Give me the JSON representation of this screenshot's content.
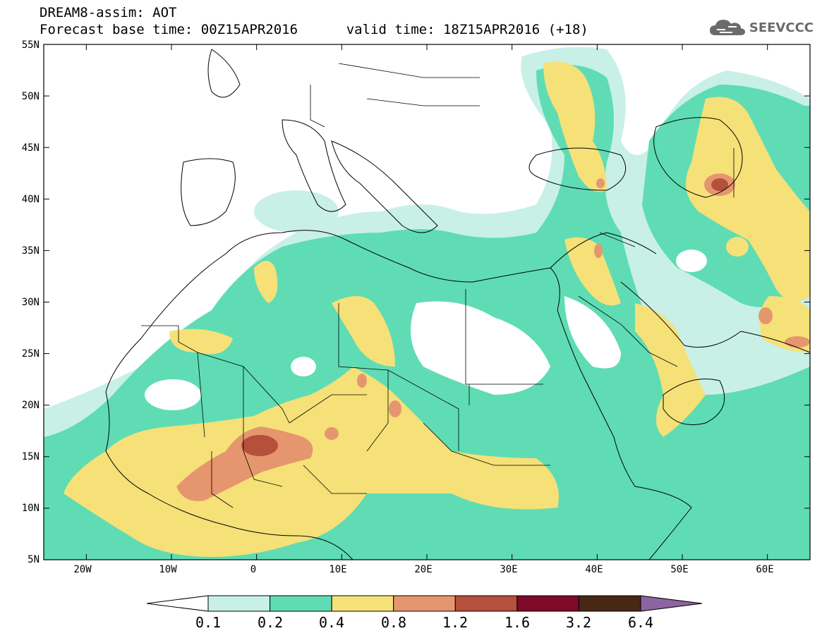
{
  "title": {
    "line1": "DREAM8-assim: AOT",
    "line2": "Forecast base time: 00Z15APR2016",
    "line3": "valid time: 18Z15APR2016 (+18)"
  },
  "logo": {
    "icon": "cloud-icon",
    "text": "SEEVCCC"
  },
  "lat_labels": [
    "55N",
    "50N",
    "45N",
    "40N",
    "35N",
    "30N",
    "25N",
    "20N",
    "15N",
    "10N",
    "5N"
  ],
  "lon_labels": [
    "20W",
    "10W",
    "0",
    "10E",
    "20E",
    "30E",
    "40E",
    "50E",
    "60E"
  ],
  "map_extent": {
    "lon": [
      -25,
      65
    ],
    "lat": [
      5,
      55
    ]
  },
  "colorbar": {
    "labels": [
      "0.1",
      "0.2",
      "0.4",
      "0.8",
      "1.2",
      "1.6",
      "3.2",
      "6.4"
    ],
    "colors": [
      "#c8f0e6",
      "#5fdcb4",
      "#f5e178",
      "#e6966e",
      "#b4503c",
      "#7d0a28",
      "#462814"
    ],
    "under_color": "#ffffff",
    "over_color": "#8c64a0"
  }
}
